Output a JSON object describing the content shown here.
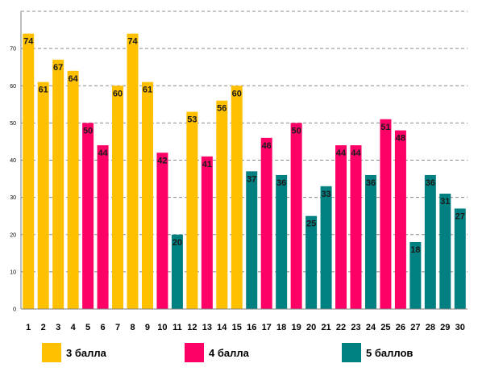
{
  "chart_data": {
    "type": "bar",
    "categories": [
      "1",
      "2",
      "3",
      "4",
      "5",
      "6",
      "7",
      "8",
      "9",
      "10",
      "11",
      "12",
      "13",
      "14",
      "15",
      "16",
      "17",
      "18",
      "19",
      "20",
      "21",
      "22",
      "23",
      "24",
      "25",
      "26",
      "27",
      "28",
      "29",
      "30"
    ],
    "values": [
      74,
      61,
      67,
      64,
      50,
      44,
      60,
      74,
      61,
      42,
      20,
      53,
      41,
      56,
      60,
      37,
      46,
      36,
      50,
      25,
      33,
      44,
      44,
      36,
      51,
      48,
      18,
      36,
      31,
      27
    ],
    "groups": [
      "3",
      "3",
      "3",
      "3",
      "4",
      "4",
      "3",
      "3",
      "3",
      "4",
      "5",
      "3",
      "4",
      "3",
      "3",
      "5",
      "4",
      "5",
      "4",
      "5",
      "5",
      "4",
      "4",
      "5",
      "4",
      "4",
      "5",
      "5",
      "5",
      "5"
    ],
    "series": [
      {
        "key": "3",
        "name": "3 балла",
        "color": "#ffc000"
      },
      {
        "key": "4",
        "name": "4 балла",
        "color": "#ff0066"
      },
      {
        "key": "5",
        "name": "5 баллов",
        "color": "#008080"
      }
    ],
    "ylim": [
      0,
      80
    ],
    "yticks": [
      0,
      10,
      20,
      30,
      40,
      50,
      60,
      70
    ],
    "grid": true,
    "legend_position": "bottom"
  }
}
